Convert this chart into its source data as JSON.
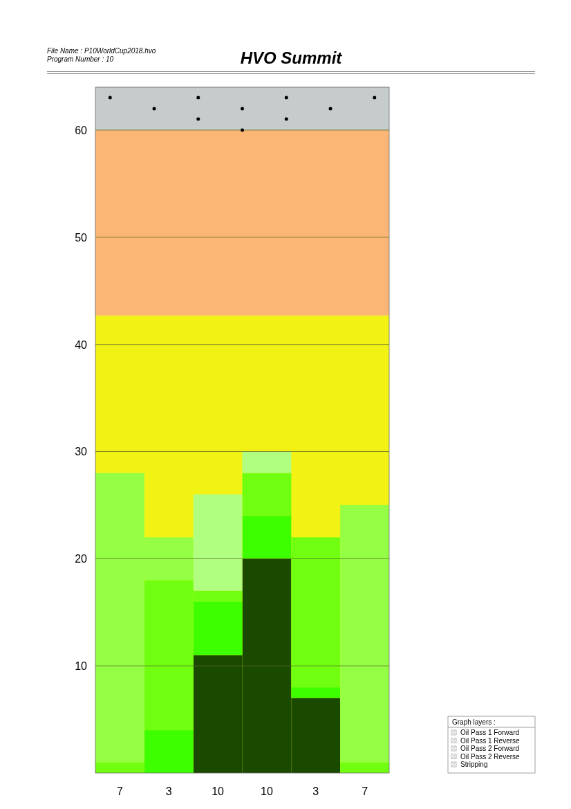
{
  "chart_data": {
    "type": "bar",
    "stacked": true,
    "title": "HVO Summit",
    "annotations": [
      "File Name : P10WorldCup2018.hvo",
      "Program Number : 10",
      "Graph layers :",
      "Oil Pass 1 Forward",
      "Oil Pass 1 Reverse",
      "Oil Pass 2 Forward",
      "Oil Pass 2 Reverse",
      "Stripping"
    ],
    "categories": [
      "7",
      "3",
      "10",
      "10",
      "3",
      "7"
    ],
    "ylim": [
      0,
      64
    ],
    "yticks": [
      10,
      20,
      30,
      40,
      50,
      60
    ],
    "grid": "y",
    "bands": [
      {
        "axis": "y",
        "from": 0,
        "to": 42.7,
        "color": "#f2f214"
      },
      {
        "axis": "y",
        "from": 42.7,
        "to": 60,
        "color": "#fbb574"
      },
      {
        "axis": "y",
        "from": 60,
        "to": 64,
        "color": "#c6cccc"
      }
    ],
    "series": [
      {
        "color": "#1a4a00",
        "values": [
          0,
          0,
          11,
          20,
          7,
          0
        ]
      },
      {
        "color": "#3dff00",
        "values": [
          0,
          4,
          5,
          4,
          1,
          0
        ]
      },
      {
        "color": "#70ff10",
        "values": [
          1,
          14,
          1,
          4,
          14,
          1
        ]
      },
      {
        "color": "#94ff44",
        "values": [
          27,
          4,
          0,
          0,
          0,
          24
        ]
      },
      {
        "color": "#b0ff80",
        "values": [
          0,
          0,
          9,
          2,
          0,
          0
        ]
      }
    ]
  }
}
